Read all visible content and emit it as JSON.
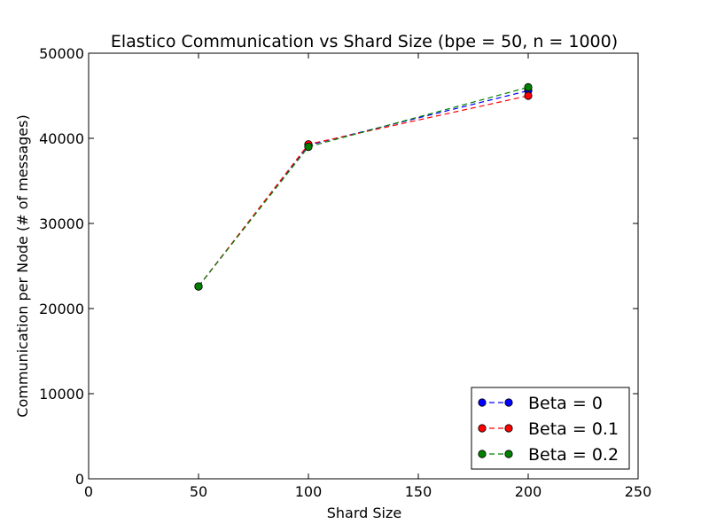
{
  "chart_data": {
    "type": "line",
    "title": "Elastico Communication vs Shard Size (bpe = 50, n = 1000)",
    "xlabel": "Shard Size",
    "ylabel": "Communication per Node (# of messages)",
    "xlim": [
      0,
      250
    ],
    "ylim": [
      0,
      50000
    ],
    "xticks": [
      0,
      50,
      100,
      150,
      200,
      250
    ],
    "yticks": [
      0,
      10000,
      20000,
      30000,
      40000,
      50000
    ],
    "xtick_labels": [
      "0",
      "50",
      "100",
      "150",
      "200",
      "250"
    ],
    "ytick_labels": [
      "0",
      "10000",
      "20000",
      "30000",
      "40000",
      "50000"
    ],
    "grid": false,
    "legend_position": "bottom-right",
    "line_style": "dashed",
    "marker": "circle",
    "x": [
      50,
      100,
      200
    ],
    "series": [
      {
        "name": "Beta = 0",
        "color": "#0000ff",
        "values": [
          22600,
          39200,
          45600
        ]
      },
      {
        "name": "Beta = 0.1",
        "color": "#ff0000",
        "values": [
          22600,
          39300,
          45000
        ]
      },
      {
        "name": "Beta = 0.2",
        "color": "#008000",
        "values": [
          22600,
          39000,
          46000
        ]
      }
    ]
  }
}
